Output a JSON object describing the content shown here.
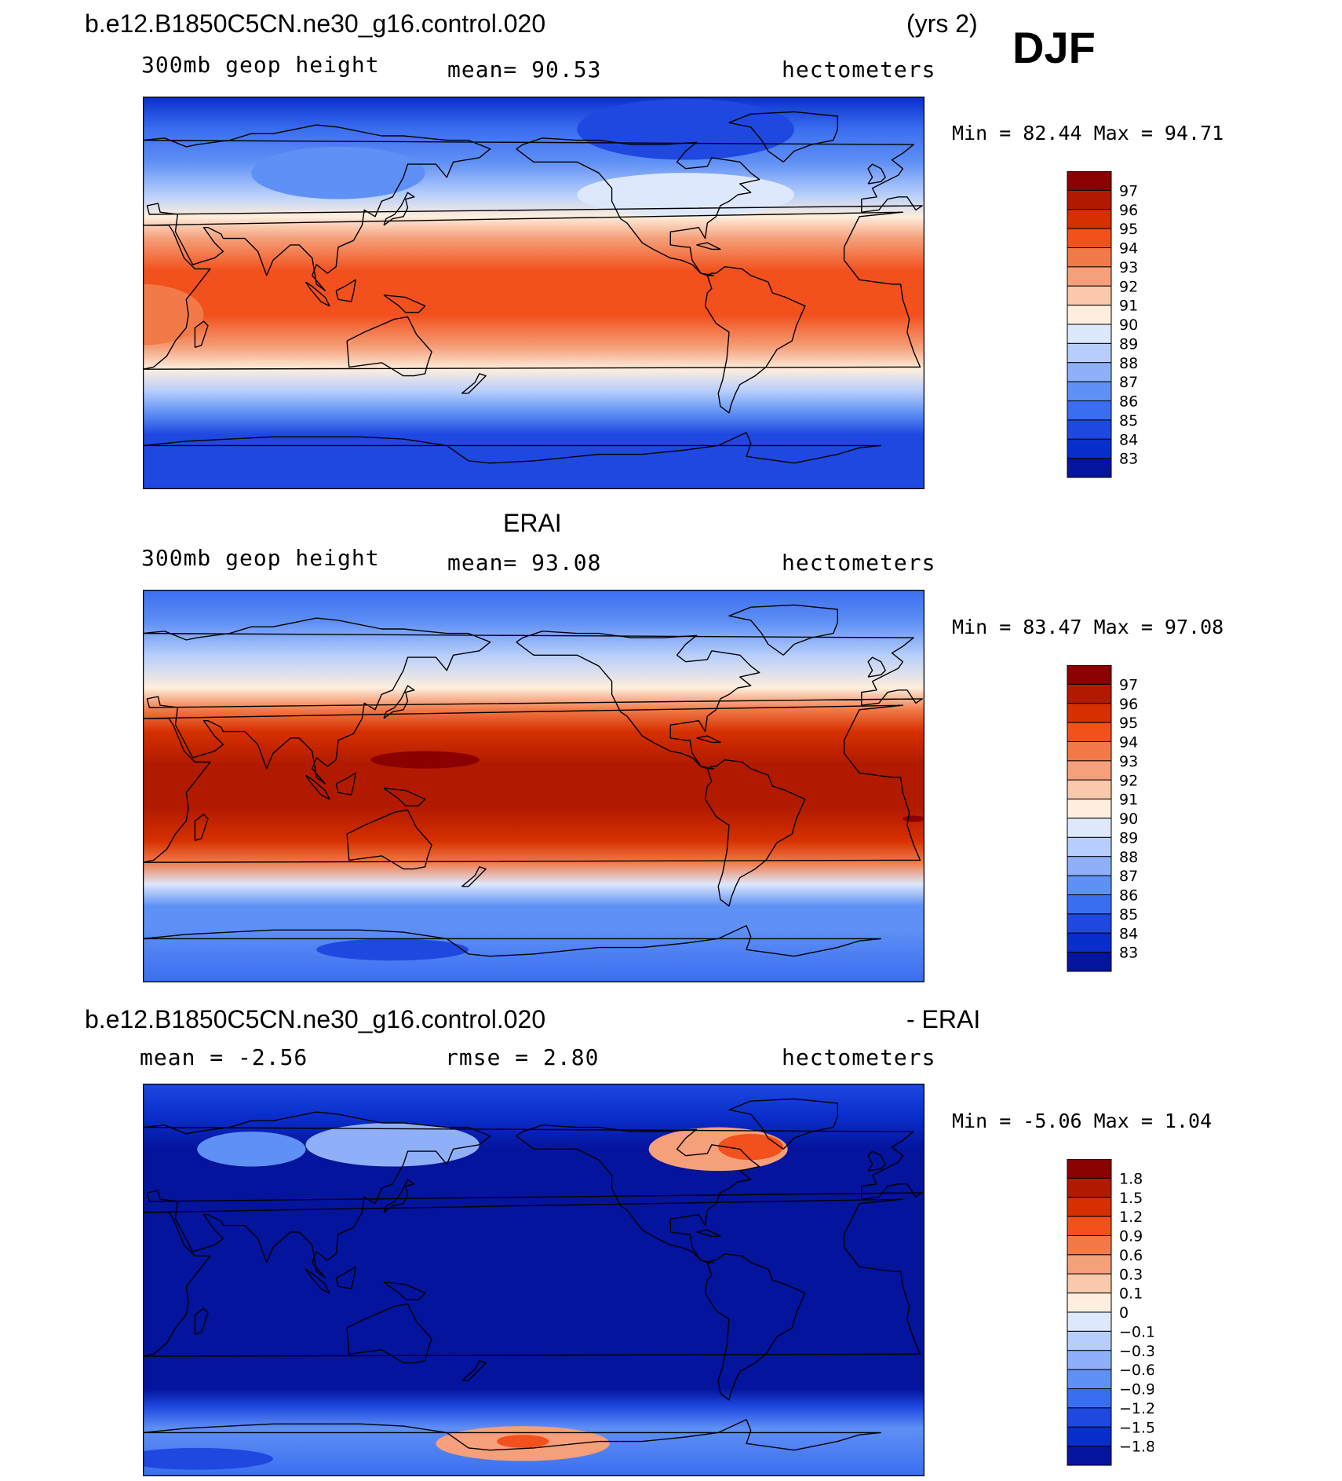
{
  "season": "DJF",
  "chart_data": [
    {
      "type": "heatmap",
      "panel": "model",
      "title": "b.e12.B1850C5CN.ne30_g16.control.020",
      "title_right": "(yrs 2)",
      "variable": "300mb geop height",
      "stat_text": "mean=   90.53",
      "units": "hectometers",
      "minmax_text": "Min =   82.44  Max =   94.71",
      "min": 82.44,
      "max": 94.71,
      "mean": 90.53,
      "colorbar_levels": [
        "97",
        "96",
        "95",
        "94",
        "93",
        "92",
        "91",
        "90",
        "89",
        "88",
        "87",
        "86",
        "85",
        "84",
        "83"
      ],
      "colorbar_colors": [
        "#8b0000",
        "#b21a00",
        "#d63000",
        "#f2501c",
        "#f27a48",
        "#f5a07a",
        "#fac8ad",
        "#feeedd",
        "#dde8fc",
        "#b7cefc",
        "#8fb0f8",
        "#5f90f5",
        "#3a6ef0",
        "#1e48e0",
        "#0a2ecc",
        "#04149c"
      ],
      "bands": [
        {
          "lat": 90,
          "value": 83.5
        },
        {
          "lat": 75,
          "value": 85
        },
        {
          "lat": 60,
          "value": 86.5
        },
        {
          "lat": 45,
          "value": 88.5
        },
        {
          "lat": 35,
          "value": 90.5
        },
        {
          "lat": 25,
          "value": 92.5
        },
        {
          "lat": 10,
          "value": 94.2
        },
        {
          "lat": -10,
          "value": 94.2
        },
        {
          "lat": -25,
          "value": 92.5
        },
        {
          "lat": -35,
          "value": 90
        },
        {
          "lat": -45,
          "value": 88
        },
        {
          "lat": -55,
          "value": 86
        },
        {
          "lat": -65,
          "value": 84.5
        },
        {
          "lat": -90,
          "value": 84
        }
      ],
      "features": [
        {
          "lon": 20,
          "lat": -10,
          "rlon": 28,
          "rlat": 14,
          "value": 93
        },
        {
          "lon": 270,
          "lat": 45,
          "rlon": 50,
          "rlat": 10,
          "value": 89.5
        },
        {
          "lon": 270,
          "lat": 75,
          "rlon": 50,
          "rlat": 14,
          "value": 84
        },
        {
          "lon": 110,
          "lat": 55,
          "rlon": 40,
          "rlat": 12,
          "value": 86
        }
      ]
    },
    {
      "type": "heatmap",
      "panel": "obs",
      "title": "ERAI",
      "variable": "300mb geop height",
      "stat_text": "mean=   93.08",
      "units": "hectometers",
      "minmax_text": "Min =   83.47  Max =   97.08",
      "min": 83.47,
      "max": 97.08,
      "mean": 93.08,
      "colorbar_levels": [
        "97",
        "96",
        "95",
        "94",
        "93",
        "92",
        "91",
        "90",
        "89",
        "88",
        "87",
        "86",
        "85",
        "84",
        "83"
      ],
      "colorbar_colors": [
        "#8b0000",
        "#b21a00",
        "#d63000",
        "#f2501c",
        "#f27a48",
        "#f5a07a",
        "#fac8ad",
        "#feeedd",
        "#dde8fc",
        "#b7cefc",
        "#8fb0f8",
        "#5f90f5",
        "#3a6ef0",
        "#1e48e0",
        "#0a2ecc",
        "#04149c"
      ],
      "bands": [
        {
          "lat": 90,
          "value": 85
        },
        {
          "lat": 75,
          "value": 86.5
        },
        {
          "lat": 60,
          "value": 88
        },
        {
          "lat": 45,
          "value": 90.5
        },
        {
          "lat": 35,
          "value": 93
        },
        {
          "lat": 25,
          "value": 95.5
        },
        {
          "lat": 10,
          "value": 96.3
        },
        {
          "lat": -10,
          "value": 96.3
        },
        {
          "lat": -25,
          "value": 95.5
        },
        {
          "lat": -35,
          "value": 93.5
        },
        {
          "lat": -45,
          "value": 89.5
        },
        {
          "lat": -55,
          "value": 86.5
        },
        {
          "lat": -65,
          "value": 86
        },
        {
          "lat": -90,
          "value": 85.5
        }
      ],
      "features": [
        {
          "lon": 150,
          "lat": 12,
          "rlon": 25,
          "rlat": 4,
          "value": 97
        },
        {
          "lon": 15,
          "lat": -15,
          "rlon": 5,
          "rlat": 1.5,
          "value": 97
        },
        {
          "lon": 135,
          "lat": -75,
          "rlon": 35,
          "rlat": 5,
          "value": 84
        }
      ]
    },
    {
      "type": "heatmap",
      "panel": "difference",
      "title": "b.e12.B1850C5CN.ne30_g16.control.020",
      "title_right": "- ERAI",
      "stat_text": "mean =   -2.56",
      "stat2_text": "rmse =    2.80",
      "units": "hectometers",
      "minmax_text": "Min =   -5.06  Max =    1.04",
      "min": -5.06,
      "max": 1.04,
      "mean": -2.56,
      "rmse": 2.8,
      "colorbar_levels": [
        "1.8",
        "1.5",
        "1.2",
        "0.9",
        "0.6",
        "0.3",
        "0.1",
        "0",
        "-0.1",
        "-0.3",
        "-0.6",
        "-0.9",
        "-1.2",
        "-1.5",
        "-1.8"
      ],
      "colorbar_colors": [
        "#8b0000",
        "#b21a00",
        "#d63000",
        "#f2501c",
        "#f27a48",
        "#f5a07a",
        "#fac8ad",
        "#feeedd",
        "#dde8fc",
        "#b7cefc",
        "#8fb0f8",
        "#5f90f5",
        "#3a6ef0",
        "#1e48e0",
        "#0a2ecc",
        "#04149c"
      ],
      "bands": [
        {
          "lat": 90,
          "value": -1.3
        },
        {
          "lat": 75,
          "value": -1.6
        },
        {
          "lat": 60,
          "value": -2.2
        },
        {
          "lat": 45,
          "value": -3
        },
        {
          "lat": 0,
          "value": -3
        },
        {
          "lat": -50,
          "value": -3
        },
        {
          "lat": -58,
          "value": -1.5
        },
        {
          "lat": -68,
          "value": -0.7
        },
        {
          "lat": -90,
          "value": -1.1
        }
      ],
      "features": [
        {
          "lon": 70,
          "lat": 60,
          "rlon": 25,
          "rlat": 8,
          "value": -0.8
        },
        {
          "lon": 135,
          "lat": 62,
          "rlon": 40,
          "rlat": 10,
          "value": -0.5
        },
        {
          "lon": 285,
          "lat": 60,
          "rlon": 32,
          "rlat": 10,
          "value": 0.4
        },
        {
          "lon": 300,
          "lat": 61,
          "rlon": 15,
          "rlat": 6,
          "value": 0.9
        },
        {
          "lon": 195,
          "lat": -75,
          "rlon": 40,
          "rlat": 8,
          "value": 0.3
        },
        {
          "lon": 195,
          "lat": -74,
          "rlon": 12,
          "rlat": 3,
          "value": 0.9
        },
        {
          "lon": 45,
          "lat": -82,
          "rlon": 35,
          "rlat": 5,
          "value": -1.3
        }
      ]
    }
  ]
}
